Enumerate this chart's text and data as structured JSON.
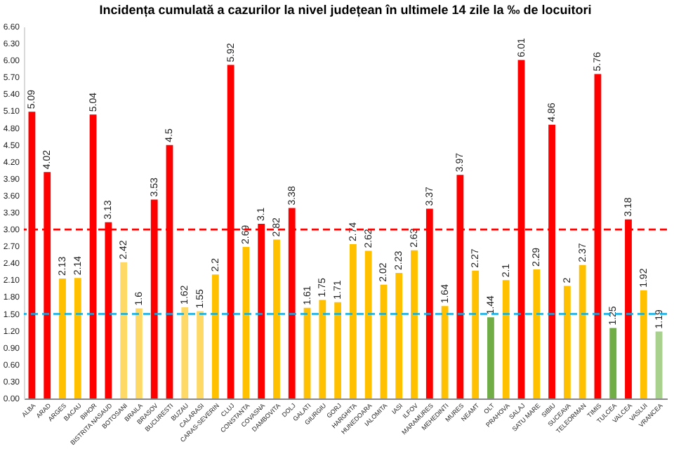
{
  "chart_data": {
    "type": "bar",
    "title": "Incidența cumulată a cazurilor la nivel județean în ultimele 14 zile la ‰ de locuitori",
    "categories": [
      "ALBA",
      "ARAD",
      "ARGES",
      "BACAU",
      "BIHOR",
      "BISTRITA NASAUD",
      "BOTOSANI",
      "BRAILA",
      "BRASOV",
      "BUCURESTI",
      "BUZAU",
      "CALARASI",
      "CARAS-SEVERIN",
      "CLUJ",
      "CONSTANTA",
      "COVASNA",
      "DAMBOVITA",
      "DOLJ",
      "GALATI",
      "GIURGIU",
      "GORJ",
      "HARGHITA",
      "HUNEDOARA",
      "IALOMITA",
      "IASI",
      "ILFOV",
      "MARAMURES",
      "MEHEDINTI",
      "MURES",
      "NEAMT",
      "OLT",
      "PRAHOVA",
      "SALAJ",
      "SATU MARE",
      "SIBIU",
      "SUCEAVA",
      "TELEORMAN",
      "TIMIS",
      "TULCEA",
      "VALCEA",
      "VASLUI",
      "VRANCEA"
    ],
    "values": [
      5.09,
      4.02,
      2.13,
      2.14,
      5.04,
      3.13,
      2.42,
      1.6,
      3.53,
      4.5,
      1.62,
      1.55,
      2.2,
      5.92,
      2.69,
      3.1,
      2.82,
      3.38,
      1.61,
      1.75,
      1.71,
      2.74,
      2.62,
      2.02,
      2.23,
      2.63,
      3.37,
      1.64,
      3.97,
      2.27,
      1.44,
      2.1,
      6.01,
      2.29,
      4.86,
      2,
      2.37,
      5.76,
      1.25,
      3.18,
      1.92,
      1.19
    ],
    "colors": [
      "#ff0000",
      "#ff0000",
      "#ffc000",
      "#ffc000",
      "#ff0000",
      "#ff0000",
      "#ffd966",
      "#ffd966",
      "#ff0000",
      "#ff0000",
      "#ffd966",
      "#ffd966",
      "#ffc000",
      "#ff0000",
      "#ffc000",
      "#ff0000",
      "#ffc000",
      "#ff0000",
      "#ffc000",
      "#ffc000",
      "#ffc000",
      "#ffc000",
      "#ffc000",
      "#ffc000",
      "#ffc000",
      "#ffc000",
      "#ff0000",
      "#ffc000",
      "#ff0000",
      "#ffc000",
      "#70ad47",
      "#ffc000",
      "#ff0000",
      "#ffc000",
      "#ff0000",
      "#ffc000",
      "#ffc000",
      "#ff0000",
      "#70ad47",
      "#ff0000",
      "#ffc000",
      "#a9d18e"
    ],
    "ylim": [
      0,
      6.6
    ],
    "yticks": [
      {
        "value": 0,
        "label": "0.00"
      },
      {
        "value": 0.3,
        "label": "0.30"
      },
      {
        "value": 0.6,
        "label": "0.60"
      },
      {
        "value": 0.9,
        "label": "0.90"
      },
      {
        "value": 1.2,
        "label": "1.20"
      },
      {
        "value": 1.5,
        "label": "1.50"
      },
      {
        "value": 1.8,
        "label": "1.80"
      },
      {
        "value": 2.1,
        "label": "2.10"
      },
      {
        "value": 2.4,
        "label": "2.40"
      },
      {
        "value": 2.7,
        "label": "2.70"
      },
      {
        "value": 3.0,
        "label": "3.00"
      },
      {
        "value": 3.3,
        "label": "3.30"
      },
      {
        "value": 3.6,
        "label": "3.60"
      },
      {
        "value": 3.9,
        "label": "3.90"
      },
      {
        "value": 4.2,
        "label": "4.20"
      },
      {
        "value": 4.5,
        "label": "4.50"
      },
      {
        "value": 4.8,
        "label": "4.80"
      },
      {
        "value": 5.1,
        "label": "5.10"
      },
      {
        "value": 5.4,
        "label": "5.40"
      },
      {
        "value": 5.7,
        "label": "5.70"
      },
      {
        "value": 6.0,
        "label": "6.00"
      },
      {
        "value": 6.3,
        "label": "6.30"
      },
      {
        "value": 6.6,
        "label": "6.60"
      }
    ],
    "ref_lines": [
      {
        "axis": "y",
        "value": 3,
        "color": "#ff0000",
        "line_style": "dashed"
      },
      {
        "axis": "y",
        "value": 1.5,
        "color": "#00b0f0",
        "line_style": "dashed"
      }
    ],
    "data_labels": true,
    "grid": false
  }
}
